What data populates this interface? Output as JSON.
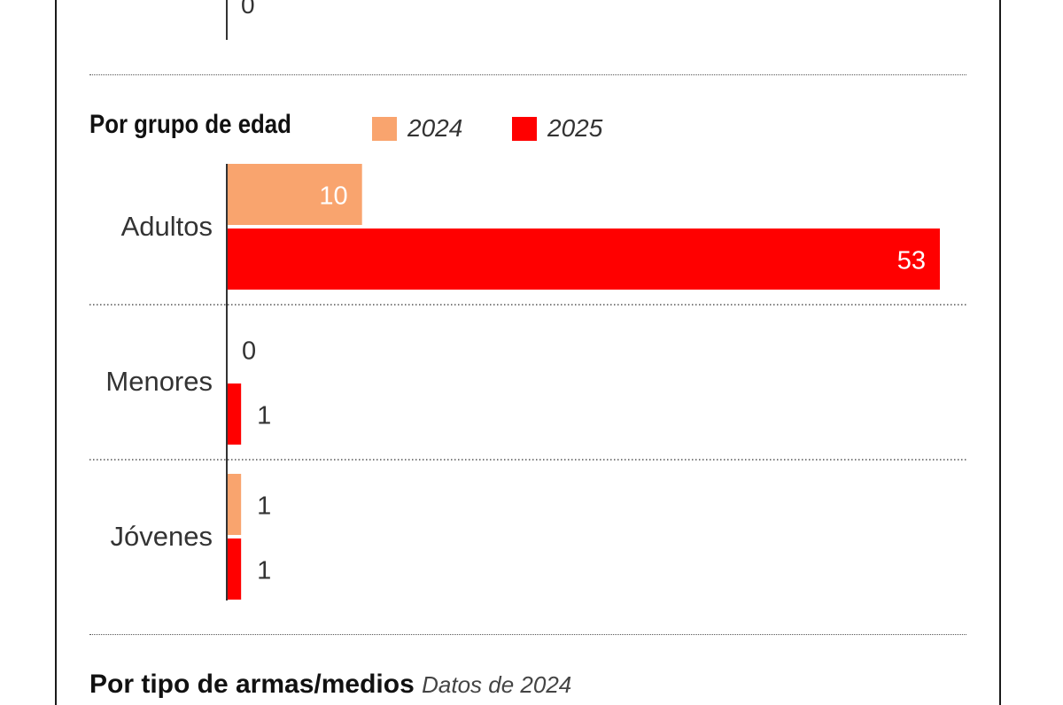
{
  "previous": {
    "visible_value": "0"
  },
  "section_title": "Por grupo de edad",
  "legend": [
    {
      "label": "2024",
      "color": "#f9a46e"
    },
    {
      "label": "2025",
      "color": "#ff0000"
    }
  ],
  "chart_data": {
    "type": "bar",
    "orientation": "horizontal",
    "title": "Por grupo de edad",
    "categories": [
      "Adultos",
      "Menores",
      "Jóvenes"
    ],
    "series": [
      {
        "name": "2024",
        "color": "#f9a46e",
        "values": [
          10,
          0,
          1
        ]
      },
      {
        "name": "2025",
        "color": "#ff0000",
        "values": [
          53,
          1,
          1
        ]
      }
    ],
    "xlim": [
      0,
      53
    ],
    "grid": false,
    "legend_position": "top"
  },
  "next_section": {
    "title": "Por tipo de armas/medios",
    "subtitle": "Datos de 2024"
  }
}
